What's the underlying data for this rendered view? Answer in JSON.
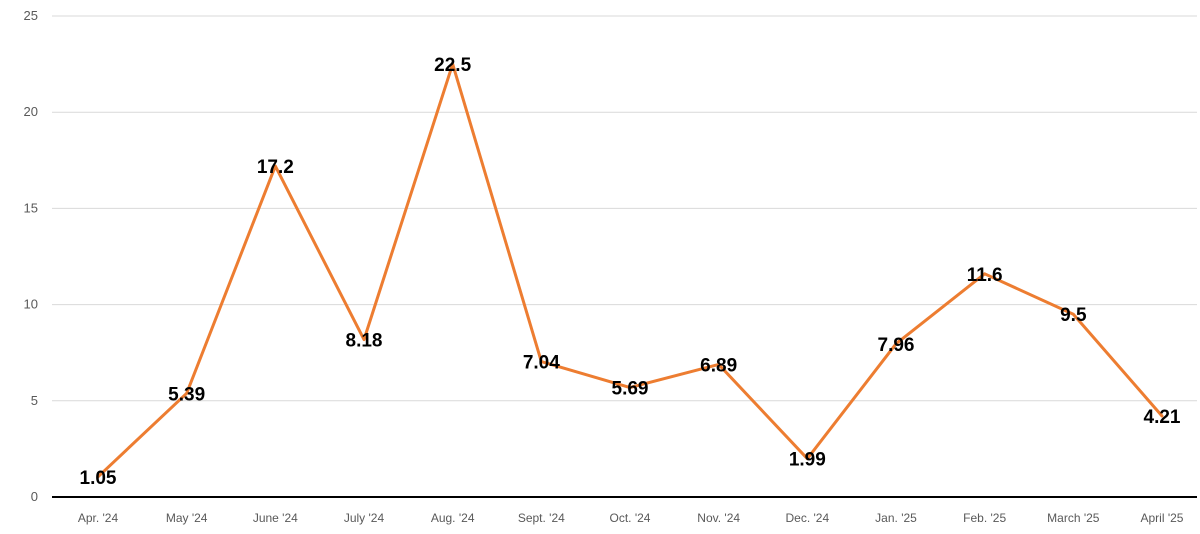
{
  "chart_data": {
    "type": "line",
    "categories": [
      "Apr. '24",
      "May '24",
      "June '24",
      "July '24",
      "Aug. '24",
      "Sept. '24",
      "Oct. '24",
      "Nov. '24",
      "Dec. '24",
      "Jan. '25",
      "Feb. '25",
      "March '25",
      "April '25"
    ],
    "series": [
      {
        "values": [
          1.05,
          5.39,
          17.2,
          8.18,
          22.5,
          7.04,
          5.69,
          6.89,
          1.99,
          7.96,
          11.6,
          9.5,
          4.21
        ],
        "labels": [
          "1.05",
          "5.39",
          "17.2",
          "8.18",
          "22.5",
          "7.04",
          "5.69",
          "6.89",
          "1.99",
          "7.96",
          "11.6",
          "9.5",
          "4.21"
        ],
        "color": "#ed7d31"
      }
    ],
    "ylim": [
      0,
      25
    ],
    "yticks": [
      "0",
      "5",
      "10",
      "15",
      "20",
      "25"
    ],
    "grid": true,
    "legend": "none"
  }
}
